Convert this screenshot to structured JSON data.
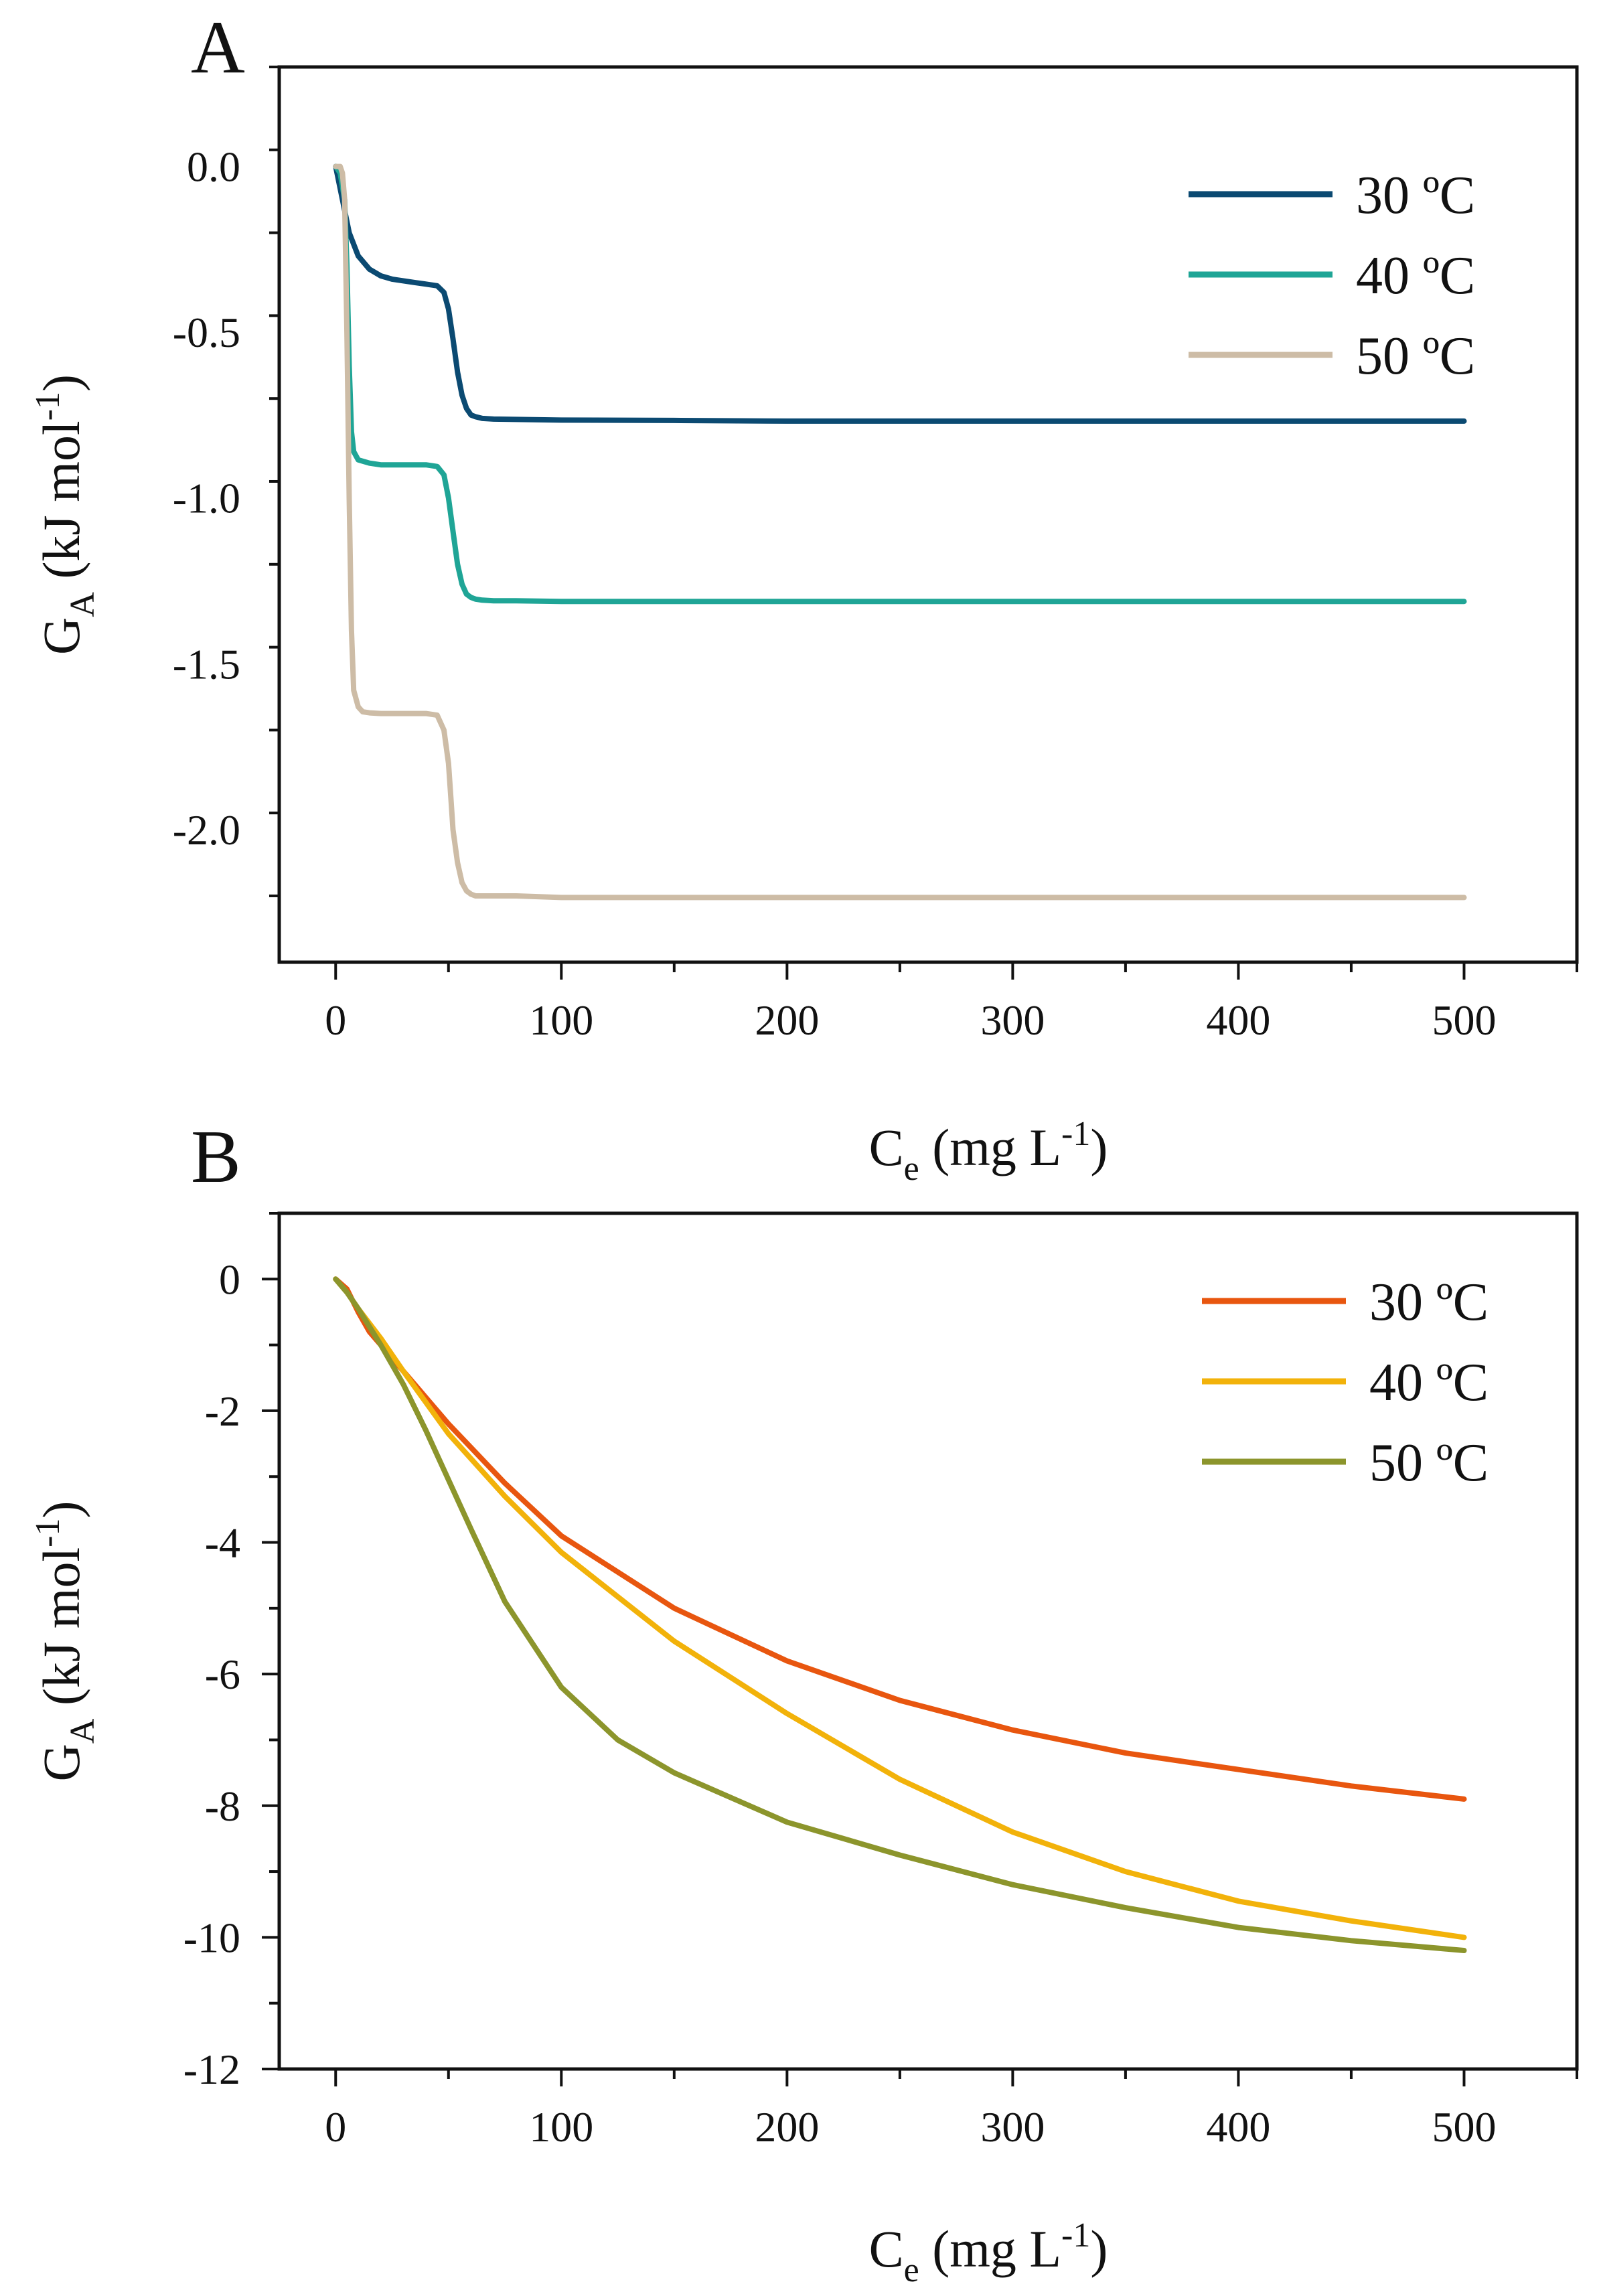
{
  "chart_data": [
    {
      "panel_label": "A",
      "type": "line",
      "title": "",
      "xlabel": {
        "main": "C",
        "sub": "e",
        "unit_pre": " (mg L",
        "sup": "-1",
        "unit_post": ")"
      },
      "ylabel": {
        "main": "G",
        "sub": "A",
        "unit_pre": " (kJ mol",
        "sup": "-1",
        "unit_post": ")"
      },
      "xlim": [
        -25,
        550
      ],
      "ylim": [
        -2.4,
        0.3
      ],
      "xticks": [
        0,
        100,
        200,
        300,
        400,
        500
      ],
      "xtick_labels": [
        "0",
        "100",
        "200",
        "300",
        "400",
        "500"
      ],
      "yticks": [
        0.0,
        -0.5,
        -1.0,
        -1.5,
        -2.0
      ],
      "ytick_labels": [
        "0.0",
        "-0.5",
        "-1.0",
        "-1.5",
        "-2.0"
      ],
      "legend_position": "top-right",
      "series": [
        {
          "name": "30 ºC",
          "color": "#0b4a72",
          "x": [
            0,
            3,
            6,
            10,
            15,
            20,
            25,
            30,
            35,
            40,
            45,
            48,
            50,
            52,
            54,
            56,
            58,
            60,
            62,
            65,
            70,
            80,
            100,
            150,
            200,
            300,
            400,
            500
          ],
          "y": [
            0.0,
            -0.1,
            -0.2,
            -0.27,
            -0.31,
            -0.33,
            -0.34,
            -0.345,
            -0.35,
            -0.355,
            -0.36,
            -0.38,
            -0.43,
            -0.52,
            -0.62,
            -0.69,
            -0.73,
            -0.75,
            -0.755,
            -0.76,
            -0.762,
            -0.763,
            -0.765,
            -0.766,
            -0.768,
            -0.768,
            -0.768,
            -0.768
          ]
        },
        {
          "name": "40 ºC",
          "color": "#1fa596",
          "x": [
            0,
            2,
            4,
            5,
            6,
            7,
            8,
            10,
            15,
            20,
            30,
            40,
            45,
            48,
            50,
            52,
            54,
            56,
            58,
            60,
            62,
            65,
            70,
            80,
            100,
            200,
            300,
            400,
            500
          ],
          "y": [
            0.0,
            -0.02,
            -0.1,
            -0.3,
            -0.6,
            -0.8,
            -0.86,
            -0.885,
            -0.895,
            -0.9,
            -0.9,
            -0.9,
            -0.905,
            -0.93,
            -1.0,
            -1.1,
            -1.2,
            -1.26,
            -1.29,
            -1.3,
            -1.305,
            -1.308,
            -1.31,
            -1.31,
            -1.312,
            -1.312,
            -1.312,
            -1.312,
            -1.312
          ]
        },
        {
          "name": "50 ºC",
          "color": "#cdbca6",
          "x": [
            0,
            2,
            3,
            4,
            5,
            6,
            7,
            8,
            10,
            12,
            15,
            20,
            30,
            40,
            45,
            48,
            50,
            51,
            52,
            54,
            56,
            58,
            60,
            62,
            65,
            70,
            80,
            100,
            200,
            300,
            400,
            500
          ],
          "y": [
            0.0,
            0.0,
            -0.02,
            -0.1,
            -0.5,
            -1.0,
            -1.4,
            -1.58,
            -1.63,
            -1.645,
            -1.648,
            -1.65,
            -1.65,
            -1.65,
            -1.655,
            -1.7,
            -1.8,
            -1.9,
            -2.0,
            -2.1,
            -2.16,
            -2.185,
            -2.195,
            -2.2,
            -2.2,
            -2.2,
            -2.2,
            -2.205,
            -2.205,
            -2.205,
            -2.205,
            -2.205
          ]
        }
      ]
    },
    {
      "panel_label": "B",
      "type": "line",
      "title": "",
      "xlabel": {
        "main": "C",
        "sub": "e",
        "unit_pre": " (mg L",
        "sup": "-1",
        "unit_post": ")"
      },
      "ylabel": {
        "main": "G",
        "sub": "A",
        "unit_pre": " (kJ mol",
        "sup": "-1",
        "unit_post": ")"
      },
      "xlim": [
        -25,
        550
      ],
      "ylim": [
        -12,
        1
      ],
      "xticks": [
        0,
        100,
        200,
        300,
        400,
        500
      ],
      "xtick_labels": [
        "0",
        "100",
        "200",
        "300",
        "400",
        "500"
      ],
      "yticks": [
        0,
        -2,
        -4,
        -6,
        -8,
        -10,
        -12
      ],
      "ytick_labels": [
        "0",
        "-2",
        "-4",
        "-6",
        "-8",
        "-10",
        "-12"
      ],
      "legend_position": "top-right",
      "series": [
        {
          "name": "30 ºC",
          "color": "#e8560f",
          "x": [
            0,
            5,
            10,
            15,
            20,
            30,
            50,
            75,
            100,
            150,
            200,
            250,
            300,
            350,
            400,
            450,
            500
          ],
          "y": [
            0.0,
            -0.15,
            -0.5,
            -0.8,
            -1.0,
            -1.4,
            -2.2,
            -3.1,
            -3.9,
            -5.0,
            -5.8,
            -6.4,
            -6.85,
            -7.2,
            -7.45,
            -7.7,
            -7.9
          ]
        },
        {
          "name": "40 ºC",
          "color": "#f2b20a",
          "x": [
            0,
            5,
            10,
            20,
            30,
            50,
            75,
            100,
            150,
            200,
            250,
            300,
            350,
            400,
            450,
            500
          ],
          "y": [
            0.0,
            -0.2,
            -0.45,
            -0.9,
            -1.4,
            -2.35,
            -3.3,
            -4.15,
            -5.5,
            -6.6,
            -7.6,
            -8.4,
            -9.0,
            -9.45,
            -9.75,
            -10.0
          ]
        },
        {
          "name": "50 ºC",
          "color": "#8c952c",
          "x": [
            0,
            5,
            10,
            20,
            30,
            40,
            50,
            60,
            75,
            100,
            125,
            150,
            200,
            250,
            300,
            350,
            400,
            450,
            500
          ],
          "y": [
            0.0,
            -0.2,
            -0.45,
            -1.0,
            -1.6,
            -2.3,
            -3.05,
            -3.8,
            -4.9,
            -6.2,
            -7.0,
            -7.5,
            -8.25,
            -8.75,
            -9.2,
            -9.55,
            -9.85,
            -10.05,
            -10.2
          ]
        }
      ]
    }
  ]
}
